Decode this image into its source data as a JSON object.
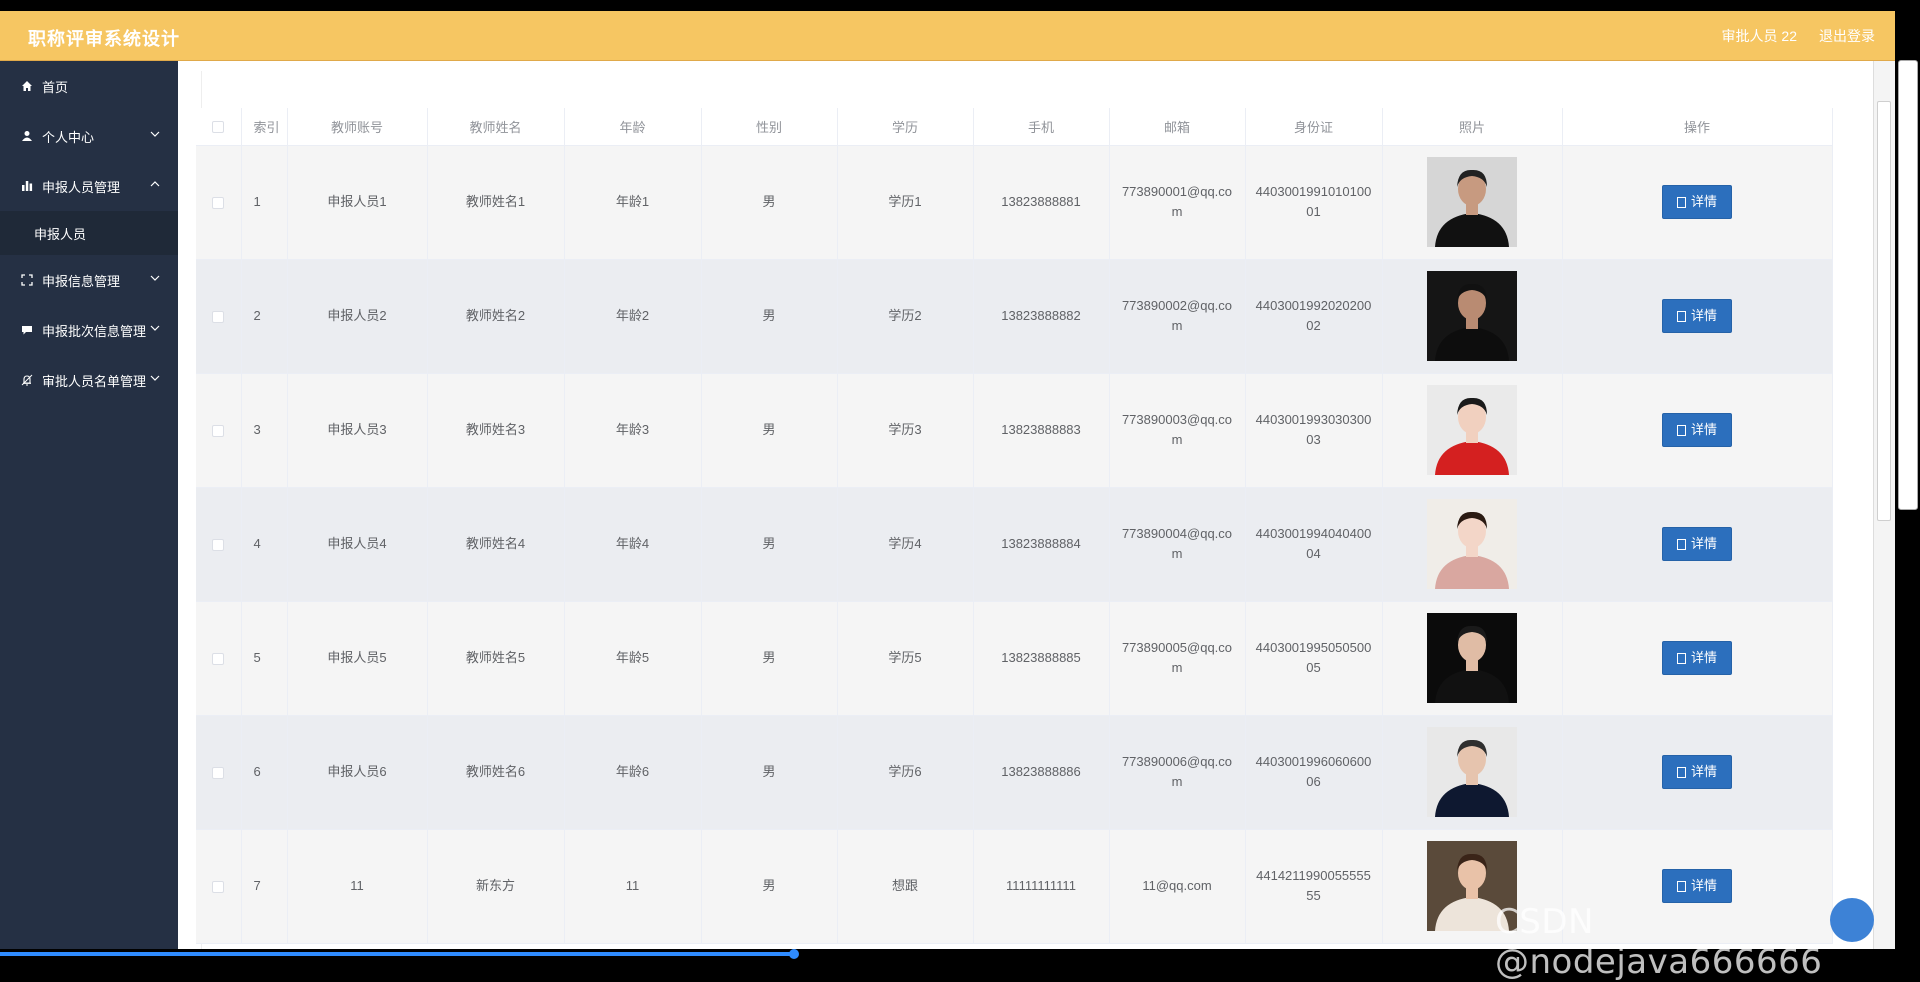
{
  "header": {
    "title": "职称评审系统设计",
    "user_label": "审批人员 22",
    "logout_label": "退出登录",
    "bg_color": "#f6c662"
  },
  "sidebar": {
    "items": [
      {
        "label": "首页",
        "icon": "home-icon"
      },
      {
        "label": "个人中心",
        "icon": "user-icon"
      },
      {
        "label": "申报人员管理",
        "icon": "bar-chart-icon"
      },
      {
        "label": "申报信息管理",
        "icon": "frame-icon"
      },
      {
        "label": "申报批次信息管理",
        "icon": "chat-icon"
      },
      {
        "label": "审批人员名单管理",
        "icon": "bell-icon"
      }
    ],
    "sub_item": "申报人员",
    "bg_color": "#253044"
  },
  "table": {
    "headers": [
      "索引",
      "教师账号",
      "教师姓名",
      "年龄",
      "性别",
      "学历",
      "手机",
      "邮箱",
      "身份证",
      "照片",
      "操作"
    ],
    "detail_label": "详情",
    "rows": [
      {
        "index": "1",
        "account": "申报人员1",
        "name": "教师姓名1",
        "age": "年龄1",
        "gender": "男",
        "edu": "学历1",
        "phone": "13823888881",
        "email": "773890001@qq.com",
        "idcard": "440300199101010001"
      },
      {
        "index": "2",
        "account": "申报人员2",
        "name": "教师姓名2",
        "age": "年龄2",
        "gender": "男",
        "edu": "学历2",
        "phone": "13823888882",
        "email": "773890002@qq.com",
        "idcard": "440300199202020002"
      },
      {
        "index": "3",
        "account": "申报人员3",
        "name": "教师姓名3",
        "age": "年龄3",
        "gender": "男",
        "edu": "学历3",
        "phone": "13823888883",
        "email": "773890003@qq.com",
        "idcard": "440300199303030003"
      },
      {
        "index": "4",
        "account": "申报人员4",
        "name": "教师姓名4",
        "age": "年龄4",
        "gender": "男",
        "edu": "学历4",
        "phone": "13823888884",
        "email": "773890004@qq.com",
        "idcard": "440300199404040004"
      },
      {
        "index": "5",
        "account": "申报人员5",
        "name": "教师姓名5",
        "age": "年龄5",
        "gender": "男",
        "edu": "学历5",
        "phone": "13823888885",
        "email": "773890005@qq.com",
        "idcard": "440300199505050005"
      },
      {
        "index": "6",
        "account": "申报人员6",
        "name": "教师姓名6",
        "age": "年龄6",
        "gender": "男",
        "edu": "学历6",
        "phone": "13823888886",
        "email": "773890006@qq.com",
        "idcard": "440300199606060006"
      },
      {
        "index": "7",
        "account": "11",
        "name": "新东方",
        "age": "11",
        "gender": "男",
        "edu": "想跟",
        "phone": "11111111111",
        "email": "11@qq.com",
        "idcard": "441421199005555555"
      }
    ]
  },
  "watermark": "CSDN @nodejava666666",
  "accent_color": "#2c6fbd"
}
